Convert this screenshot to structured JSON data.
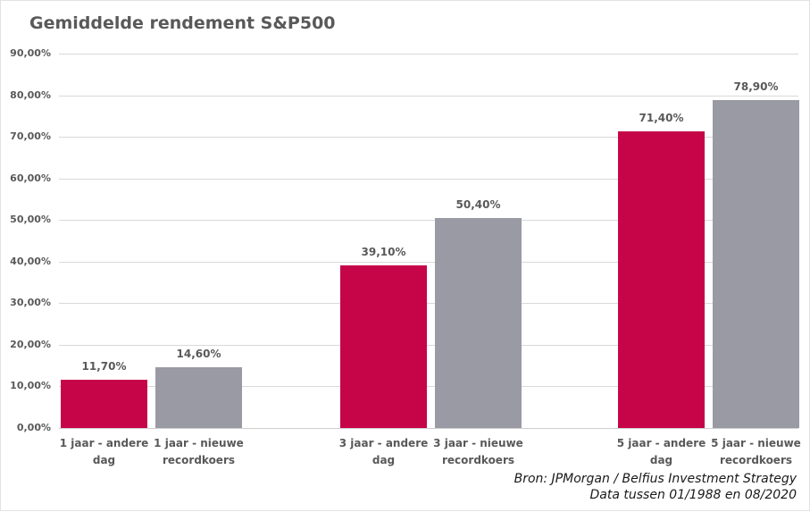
{
  "title": "Gemiddelde rendement S&P500",
  "source": {
    "line1": "Bron: JPMorgan / Belfius Investment Strategy",
    "line2": "Data tussen 01/1988 en 08/2020"
  },
  "colors": {
    "bar_red": "#c60549",
    "bar_gray": "#9a9aa4",
    "title_text": "#595959",
    "axis_text": "#595959",
    "gridline": "#d9d9d9",
    "source_text": "#1a1a1a",
    "background": "#ffffff"
  },
  "chart_data": {
    "type": "bar",
    "title": "Gemiddelde rendement S&P500",
    "categories": [
      "1 jaar - andere dag",
      "1 jaar - nieuwe recordkoers",
      "3 jaar - andere dag",
      "3 jaar - nieuwe recordkoers",
      "5 jaar - andere dag",
      "5 jaar - nieuwe recordkoers"
    ],
    "category_lines": [
      [
        "1 jaar - andere",
        "dag"
      ],
      [
        "1 jaar - nieuwe",
        "recordkoers"
      ],
      [
        "3 jaar - andere",
        "dag"
      ],
      [
        "3 jaar - nieuwe",
        "recordkoers"
      ],
      [
        "5 jaar - andere",
        "dag"
      ],
      [
        "5 jaar - nieuwe",
        "recordkoers"
      ]
    ],
    "values": [
      11.7,
      14.6,
      39.1,
      50.4,
      71.4,
      78.9
    ],
    "value_labels": [
      "11,70%",
      "14,60%",
      "39,10%",
      "50,40%",
      "71,40%",
      "78,90%"
    ],
    "bar_color_keys": [
      "bar_red",
      "bar_gray",
      "bar_red",
      "bar_gray",
      "bar_red",
      "bar_gray"
    ],
    "groups": [
      [
        0,
        1
      ],
      [
        2,
        3
      ],
      [
        4,
        5
      ]
    ],
    "xlabel": "",
    "ylabel": "",
    "ylim": [
      0,
      90
    ],
    "ytick_step": 10,
    "ytick_labels": [
      "0,00%",
      "10,00%",
      "20,00%",
      "30,00%",
      "40,00%",
      "50,00%",
      "60,00%",
      "70,00%",
      "80,00%",
      "90,00%"
    ],
    "grid": true,
    "legend_position": "none"
  }
}
